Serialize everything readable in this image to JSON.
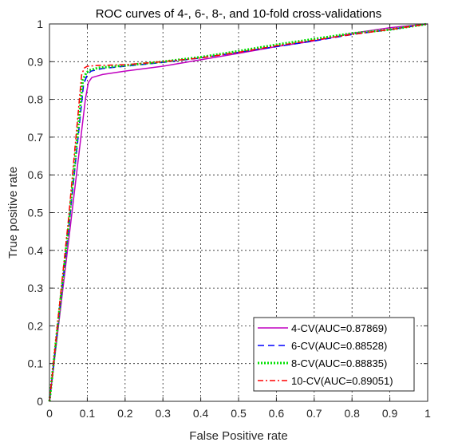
{
  "chart_data": {
    "type": "line",
    "title": "ROC curves of 4-, 6-, 8-, and 10-fold cross-validations",
    "xlabel": "False Positive rate",
    "ylabel": "True positive rate",
    "xlim": [
      0,
      1
    ],
    "ylim": [
      0,
      1
    ],
    "grid": true,
    "legend_position": "bottom-right",
    "xticks": [
      "0",
      "0.1",
      "0.2",
      "0.3",
      "0.4",
      "0.5",
      "0.6",
      "0.7",
      "0.8",
      "0.9",
      "1"
    ],
    "yticks": [
      "0",
      "0.1",
      "0.2",
      "0.3",
      "0.4",
      "0.5",
      "0.6",
      "0.7",
      "0.8",
      "0.9",
      "1"
    ],
    "series": [
      {
        "name": "4-CV(AUC=0.87869)",
        "color": "#c000c0",
        "dash": "solid",
        "x": [
          0,
          0.05,
          0.095,
          0.103,
          0.112,
          0.14,
          0.2,
          0.3,
          0.4,
          0.5,
          0.6,
          0.7,
          0.8,
          0.9,
          1.0
        ],
        "y": [
          0,
          0.42,
          0.8,
          0.845,
          0.858,
          0.866,
          0.875,
          0.888,
          0.905,
          0.922,
          0.94,
          0.955,
          0.975,
          0.99,
          1.0
        ]
      },
      {
        "name": "6-CV(AUC=0.88528)",
        "color": "#0000ff",
        "dash": "dashed",
        "x": [
          0,
          0.05,
          0.09,
          0.1,
          0.11,
          0.14,
          0.2,
          0.3,
          0.4,
          0.5,
          0.6,
          0.7,
          0.8,
          0.9,
          1.0
        ],
        "y": [
          0,
          0.45,
          0.84,
          0.865,
          0.875,
          0.882,
          0.888,
          0.898,
          0.91,
          0.925,
          0.94,
          0.955,
          0.972,
          0.985,
          1.0
        ]
      },
      {
        "name": "8-CV(AUC=0.88835)",
        "color": "#00e000",
        "dash": "dotted",
        "x": [
          0,
          0.05,
          0.088,
          0.097,
          0.105,
          0.13,
          0.2,
          0.3,
          0.4,
          0.5,
          0.6,
          0.7,
          0.8,
          0.9,
          1.0
        ],
        "y": [
          0,
          0.46,
          0.85,
          0.87,
          0.877,
          0.884,
          0.89,
          0.9,
          0.912,
          0.928,
          0.945,
          0.96,
          0.975,
          0.985,
          1.0
        ]
      },
      {
        "name": "10-CV(AUC=0.89051)",
        "color": "#ff0000",
        "dash": "dashdot",
        "x": [
          0,
          0.05,
          0.085,
          0.092,
          0.1,
          0.13,
          0.2,
          0.3,
          0.4,
          0.5,
          0.6,
          0.7,
          0.8,
          0.9,
          1.0
        ],
        "y": [
          0,
          0.48,
          0.865,
          0.883,
          0.888,
          0.89,
          0.892,
          0.9,
          0.91,
          0.925,
          0.942,
          0.957,
          0.972,
          0.985,
          1.0
        ]
      }
    ]
  }
}
